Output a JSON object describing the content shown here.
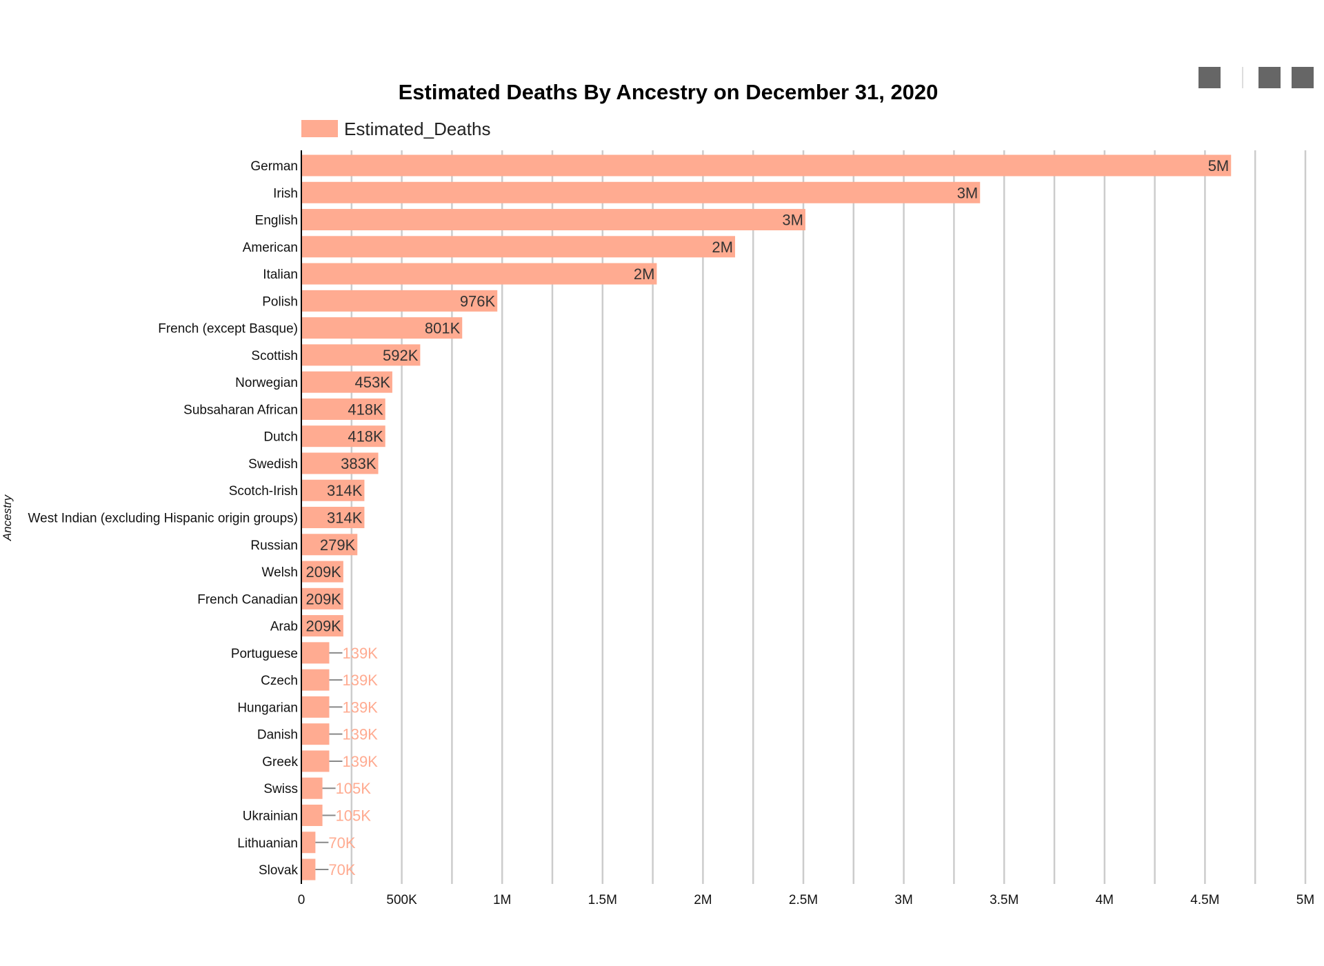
{
  "toolbar": {
    "buttons": [
      {
        "name": "toolbar-button-1",
        "icon": "square-icon"
      },
      {
        "name": "toolbar-button-2",
        "icon": "square-icon"
      },
      {
        "name": "toolbar-button-3",
        "icon": "square-icon"
      }
    ],
    "color": "#666666"
  },
  "chart_data": {
    "type": "bar",
    "orientation": "horizontal",
    "title": "Estimated Deaths By Ancestry on December 31, 2020",
    "ylabel": "Ancestry",
    "xlabel": "",
    "legend": {
      "position": "top-left",
      "entries": [
        "Estimated_Deaths"
      ]
    },
    "bar_color": "#ffab91",
    "inside_label_color": "#333333",
    "outside_label_color": "#ffab91",
    "grid": true,
    "xlim": [
      0,
      5000000
    ],
    "x_ticks": [
      0,
      500000,
      1000000,
      1500000,
      2000000,
      2500000,
      3000000,
      3500000,
      4000000,
      4500000,
      5000000
    ],
    "x_tick_labels": [
      "0",
      "500K",
      "1M",
      "1.5M",
      "2M",
      "2.5M",
      "3M",
      "3.5M",
      "4M",
      "4.5M",
      "5M"
    ],
    "categories": [
      "German",
      "Irish",
      "English",
      "American",
      "Italian",
      "Polish",
      "French (except Basque)",
      "Scottish",
      "Norwegian",
      "Subsaharan African",
      "Dutch",
      "Swedish",
      "Scotch-Irish",
      "West Indian (excluding Hispanic origin groups)",
      "Russian",
      "Welsh",
      "French Canadian",
      "Arab",
      "Portuguese",
      "Czech",
      "Hungarian",
      "Danish",
      "Greek",
      "Swiss",
      "Ukrainian",
      "Lithuanian",
      "Slovak"
    ],
    "series": [
      {
        "name": "Estimated_Deaths",
        "values": [
          4630000,
          3380000,
          2510000,
          2160000,
          1770000,
          976000,
          801000,
          592000,
          453000,
          418000,
          418000,
          383000,
          314000,
          314000,
          279000,
          209000,
          209000,
          209000,
          139000,
          139000,
          139000,
          139000,
          139000,
          105000,
          105000,
          70000,
          70000
        ],
        "labels": [
          "5M",
          "3M",
          "3M",
          "2M",
          "2M",
          "976K",
          "801K",
          "592K",
          "453K",
          "418K",
          "418K",
          "383K",
          "314K",
          "314K",
          "279K",
          "209K",
          "209K",
          "209K",
          "139K",
          "139K",
          "139K",
          "139K",
          "139K",
          "105K",
          "105K",
          "70K",
          "70K"
        ]
      }
    ]
  }
}
